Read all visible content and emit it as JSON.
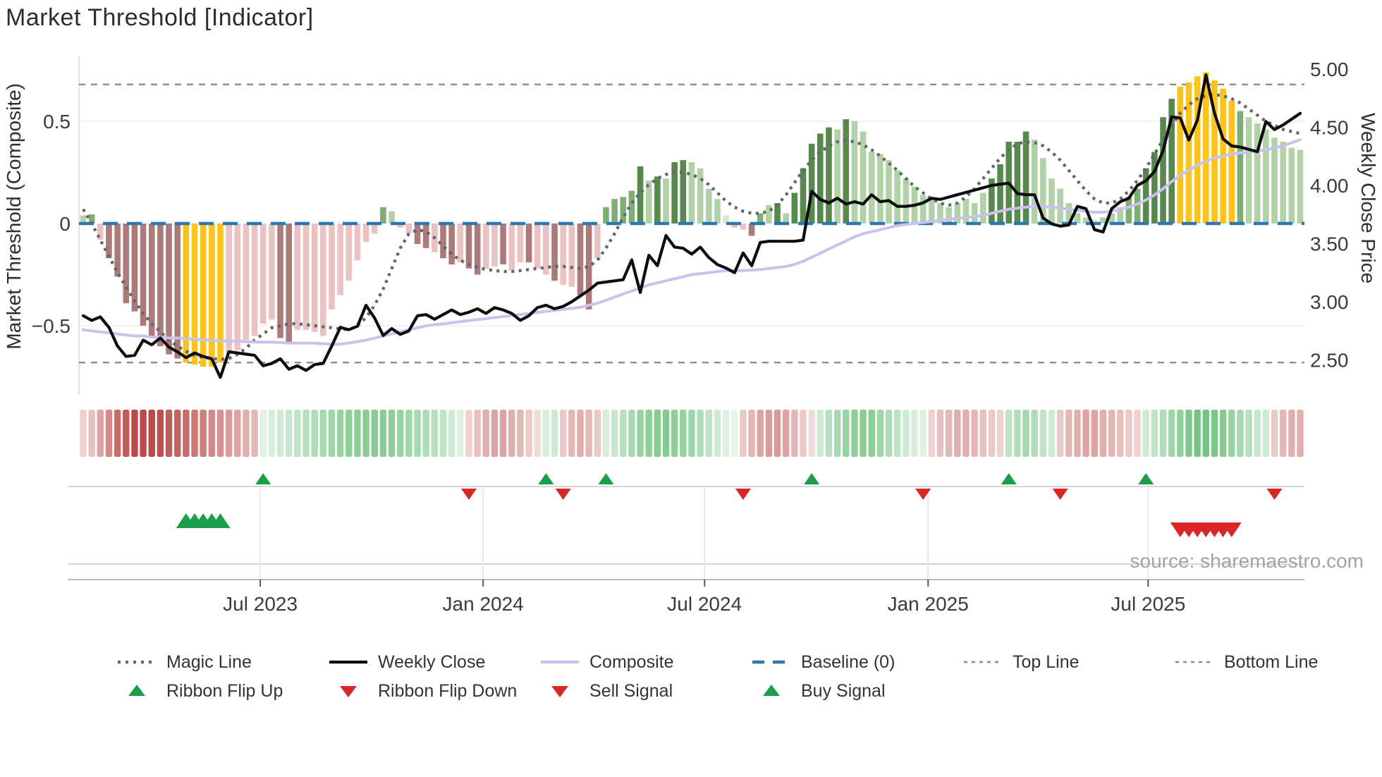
{
  "title": "Market Threshold [Indicator]",
  "source_text": "source: sharemaestro.com",
  "axes": {
    "left_label": "Market Threshold (Composite)",
    "right_label": "Weekly Close Price",
    "left_ticks": [
      {
        "label": "0.5",
        "value": 0.5
      },
      {
        "label": "0",
        "value": 0
      },
      {
        "label": "−0.5",
        "value": -0.5
      }
    ],
    "right_ticks": [
      {
        "label": "5.00",
        "value": 5.0
      },
      {
        "label": "4.50",
        "value": 4.5
      },
      {
        "label": "4.00",
        "value": 4.0
      },
      {
        "label": "3.50",
        "value": 3.5
      },
      {
        "label": "3.00",
        "value": 3.0
      },
      {
        "label": "2.50",
        "value": 2.5
      }
    ],
    "x_ticks": [
      {
        "label": "Jul 2023",
        "week": 20.66
      },
      {
        "label": "Jan 2024",
        "week": 46.66
      },
      {
        "label": "Jul 2024",
        "week": 72.5
      },
      {
        "label": "Jan 2025",
        "week": 98.58
      },
      {
        "label": "Jul 2025",
        "week": 124.26
      }
    ]
  },
  "legend": {
    "row1": [
      {
        "key": "magic",
        "label": "Magic Line"
      },
      {
        "key": "close",
        "label": "Weekly Close"
      },
      {
        "key": "composite",
        "label": "Composite"
      },
      {
        "key": "baseline",
        "label": "Baseline (0)"
      },
      {
        "key": "topline",
        "label": "Top Line"
      },
      {
        "key": "bottomline",
        "label": "Bottom Line"
      }
    ],
    "row2": [
      {
        "key": "flipup",
        "label": "Ribbon Flip Up"
      },
      {
        "key": "flipdown",
        "label": "Ribbon Flip Down"
      },
      {
        "key": "sell",
        "label": "Sell Signal"
      },
      {
        "key": "buy",
        "label": "Buy Signal"
      }
    ]
  },
  "colors": {
    "dark_green": "#57894e",
    "medium_green": "#7fae74",
    "light_green": "#b1d2a6",
    "pale_green": "#d8ebd1",
    "yellow": "#fbc41d",
    "mauve_red": "#ac7a79",
    "light_pink": "#e9c2c1",
    "close_line": "#0d0d0d",
    "composite_line": "#c8c2ec",
    "magic_line": "#62656d",
    "baseline": "#2e77ae",
    "guide_line": "#8b8b8b",
    "signal_green": "#1a9e4b",
    "signal_red": "#d92627",
    "ribbon_green_max": "#5fba6f",
    "ribbon_red_max": "#b94a47",
    "gridline": "#edeef2"
  },
  "chart_data": {
    "type": "bar",
    "description": "Weekly market-threshold histogram (left axis) with weekly close price, composite and magic lines; ribbon strip and buy/sell/flip signal markers below.",
    "n_weeks": 143,
    "ylim_left": [
      -0.75,
      0.8
    ],
    "top_line_value": 0.68,
    "bottom_line_value": -0.68,
    "baseline_value": 0,
    "threshold_values": [
      0.04,
      0.045,
      -0.08,
      -0.17,
      -0.26,
      -0.39,
      -0.43,
      -0.5,
      -0.55,
      -0.6,
      -0.64,
      -0.66,
      -0.68,
      -0.69,
      -0.7,
      -0.7,
      -0.68,
      -0.64,
      -0.62,
      -0.57,
      -0.55,
      -0.49,
      -0.47,
      -0.56,
      -0.59,
      -0.52,
      -0.52,
      -0.53,
      -0.55,
      -0.42,
      -0.35,
      -0.28,
      -0.18,
      -0.09,
      -0.05,
      0.08,
      0.06,
      -0.02,
      -0.05,
      -0.1,
      -0.12,
      -0.14,
      -0.17,
      -0.2,
      -0.19,
      -0.22,
      -0.25,
      -0.22,
      -0.21,
      -0.2,
      -0.23,
      -0.19,
      -0.19,
      -0.22,
      -0.25,
      -0.28,
      -0.3,
      -0.31,
      -0.35,
      -0.42,
      -0.17,
      0.08,
      0.12,
      0.13,
      0.16,
      0.28,
      0.21,
      0.23,
      0.22,
      0.3,
      0.31,
      0.3,
      0.27,
      0.17,
      0.12,
      0.04,
      -0.02,
      -0.03,
      -0.06,
      0.05,
      0.09,
      0.1,
      0.05,
      0.15,
      0.27,
      0.39,
      0.44,
      0.47,
      0.46,
      0.51,
      0.5,
      0.45,
      0.35,
      0.34,
      0.31,
      0.26,
      0.22,
      0.18,
      0.14,
      0.12,
      0.1,
      0.08,
      0.1,
      0.12,
      0.1,
      0.15,
      0.22,
      0.29,
      0.4,
      0.4,
      0.45,
      0.41,
      0.32,
      0.22,
      0.17,
      0.1,
      0.05,
      0.03,
      0.02,
      0.03,
      0.05,
      0.08,
      0.13,
      0.17,
      0.27,
      0.35,
      0.52,
      0.61,
      0.67,
      0.69,
      0.72,
      0.74,
      0.7,
      0.66,
      0.6,
      0.55,
      0.52,
      0.49,
      0.46,
      0.42,
      0.4,
      0.37,
      0.36
    ],
    "threshold_colors": [
      "lg",
      "mg",
      "lp",
      "mv",
      "mv",
      "mv",
      "mv",
      "mv",
      "mv",
      "mv",
      "mv",
      "mv",
      "yl",
      "yl",
      "yl",
      "yl",
      "yl",
      "lp",
      "lp",
      "lp",
      "lp",
      "lp",
      "lp",
      "mv",
      "mv",
      "lp",
      "lp",
      "lp",
      "lp",
      "lp",
      "lp",
      "lp",
      "lp",
      "lp",
      "lp",
      "mg",
      "lg",
      "lp",
      "lp",
      "mv",
      "mv",
      "lp",
      "mv",
      "mv",
      "lp",
      "mv",
      "mv",
      "lp",
      "lp",
      "mv",
      "lp",
      "lp",
      "mv",
      "lp",
      "lp",
      "mv",
      "lp",
      "lp",
      "mv",
      "mv",
      "lp",
      "mg",
      "mg",
      "mg",
      "mg",
      "dg",
      "lg",
      "dg",
      "lg",
      "dg",
      "dg",
      "lg",
      "lg",
      "lg",
      "lg",
      "pg",
      "lp",
      "lp",
      "mv",
      "mg",
      "lg",
      "dg",
      "lg",
      "dg",
      "dg",
      "dg",
      "dg",
      "dg",
      "lg",
      "dg",
      "lg",
      "lg",
      "lg",
      "lg",
      "lg",
      "lg",
      "lg",
      "lg",
      "lg",
      "lg",
      "lg",
      "lg",
      "lg",
      "lg",
      "lg",
      "lg",
      "dg",
      "dg",
      "dg",
      "dg",
      "dg",
      "lg",
      "lg",
      "lg",
      "lg",
      "lg",
      "lg",
      "lg",
      "pg",
      "lg",
      "lg",
      "lg",
      "mg",
      "mg",
      "dg",
      "dg",
      "dg",
      "dg",
      "yl",
      "yl",
      "yl",
      "yl",
      "yl",
      "yl",
      "yl",
      "mg",
      "lg",
      "lg",
      "lg",
      "lg",
      "lg",
      "lg",
      "lg"
    ],
    "weekly_close": [
      2.88,
      2.84,
      2.87,
      2.78,
      2.62,
      2.53,
      2.54,
      2.67,
      2.63,
      2.69,
      2.61,
      2.57,
      2.52,
      2.56,
      2.53,
      2.51,
      2.35,
      2.57,
      2.56,
      2.55,
      2.54,
      2.45,
      2.47,
      2.51,
      2.42,
      2.45,
      2.41,
      2.46,
      2.47,
      2.62,
      2.78,
      2.76,
      2.79,
      2.97,
      2.86,
      2.71,
      2.77,
      2.72,
      2.75,
      2.88,
      2.89,
      2.85,
      2.89,
      2.93,
      2.89,
      2.91,
      2.94,
      2.9,
      2.95,
      2.93,
      2.9,
      2.84,
      2.88,
      2.95,
      2.97,
      2.94,
      2.96,
      3.0,
      3.05,
      3.1,
      3.16,
      3.17,
      3.18,
      3.19,
      3.36,
      3.08,
      3.4,
      3.31,
      3.57,
      3.47,
      3.46,
      3.41,
      3.47,
      3.38,
      3.32,
      3.29,
      3.25,
      3.42,
      3.31,
      3.51,
      3.52,
      3.52,
      3.52,
      3.52,
      3.53,
      3.95,
      3.88,
      3.85,
      3.89,
      3.84,
      3.86,
      3.84,
      3.92,
      3.86,
      3.87,
      3.82,
      3.82,
      3.83,
      3.85,
      3.89,
      3.88,
      3.9,
      3.92,
      3.94,
      3.96,
      3.98,
      4.0,
      4.01,
      4.02,
      3.93,
      3.92,
      3.92,
      3.72,
      3.67,
      3.65,
      3.66,
      3.82,
      3.8,
      3.62,
      3.6,
      3.8,
      3.86,
      3.89,
      4.0,
      4.04,
      4.12,
      4.3,
      4.59,
      4.58,
      4.39,
      4.56,
      4.95,
      4.62,
      4.4,
      4.34,
      4.33,
      4.31,
      4.29,
      4.55,
      4.48,
      4.52,
      4.57,
      4.62
    ],
    "composite": [
      -0.52,
      -0.525,
      -0.53,
      -0.535,
      -0.54,
      -0.545,
      -0.55,
      -0.55,
      -0.555,
      -0.555,
      -0.56,
      -0.56,
      -0.565,
      -0.565,
      -0.57,
      -0.57,
      -0.575,
      -0.575,
      -0.575,
      -0.578,
      -0.58,
      -0.58,
      -0.58,
      -0.582,
      -0.585,
      -0.585,
      -0.585,
      -0.585,
      -0.588,
      -0.59,
      -0.59,
      -0.585,
      -0.578,
      -0.57,
      -0.56,
      -0.55,
      -0.54,
      -0.53,
      -0.52,
      -0.51,
      -0.5,
      -0.495,
      -0.49,
      -0.485,
      -0.48,
      -0.475,
      -0.47,
      -0.465,
      -0.46,
      -0.455,
      -0.45,
      -0.445,
      -0.44,
      -0.435,
      -0.43,
      -0.425,
      -0.42,
      -0.415,
      -0.41,
      -0.4,
      -0.39,
      -0.375,
      -0.36,
      -0.345,
      -0.33,
      -0.315,
      -0.3,
      -0.29,
      -0.28,
      -0.27,
      -0.26,
      -0.25,
      -0.245,
      -0.24,
      -0.235,
      -0.23,
      -0.23,
      -0.23,
      -0.228,
      -0.225,
      -0.22,
      -0.215,
      -0.21,
      -0.2,
      -0.185,
      -0.165,
      -0.145,
      -0.125,
      -0.105,
      -0.085,
      -0.065,
      -0.05,
      -0.04,
      -0.03,
      -0.02,
      -0.01,
      -0.005,
      0.0,
      0.005,
      0.01,
      0.015,
      0.02,
      0.025,
      0.03,
      0.035,
      0.04,
      0.05,
      0.06,
      0.07,
      0.075,
      0.08,
      0.085,
      0.085,
      0.08,
      0.075,
      0.07,
      0.065,
      0.06,
      0.055,
      0.055,
      0.06,
      0.07,
      0.08,
      0.095,
      0.115,
      0.14,
      0.17,
      0.205,
      0.235,
      0.26,
      0.285,
      0.305,
      0.32,
      0.33,
      0.34,
      0.345,
      0.35,
      0.355,
      0.36,
      0.37,
      0.38,
      0.395,
      0.41
    ],
    "magic": [
      0.07,
      0.0,
      -0.08,
      -0.16,
      -0.24,
      -0.31,
      -0.38,
      -0.44,
      -0.49,
      -0.53,
      -0.57,
      -0.6,
      -0.625,
      -0.645,
      -0.655,
      -0.66,
      -0.665,
      -0.66,
      -0.64,
      -0.61,
      -0.57,
      -0.54,
      -0.51,
      -0.5,
      -0.49,
      -0.49,
      -0.495,
      -0.5,
      -0.505,
      -0.51,
      -0.515,
      -0.52,
      -0.5,
      -0.46,
      -0.4,
      -0.32,
      -0.22,
      -0.12,
      -0.05,
      -0.03,
      -0.04,
      -0.07,
      -0.11,
      -0.15,
      -0.18,
      -0.2,
      -0.215,
      -0.225,
      -0.23,
      -0.235,
      -0.235,
      -0.23,
      -0.225,
      -0.22,
      -0.215,
      -0.21,
      -0.21,
      -0.215,
      -0.22,
      -0.21,
      -0.18,
      -0.12,
      -0.05,
      0.03,
      0.1,
      0.15,
      0.19,
      0.22,
      0.24,
      0.25,
      0.25,
      0.24,
      0.22,
      0.19,
      0.15,
      0.11,
      0.08,
      0.06,
      0.05,
      0.05,
      0.06,
      0.09,
      0.14,
      0.2,
      0.26,
      0.31,
      0.35,
      0.38,
      0.4,
      0.405,
      0.4,
      0.385,
      0.36,
      0.33,
      0.295,
      0.26,
      0.22,
      0.18,
      0.15,
      0.12,
      0.1,
      0.09,
      0.1,
      0.13,
      0.17,
      0.22,
      0.27,
      0.32,
      0.36,
      0.39,
      0.4,
      0.395,
      0.38,
      0.35,
      0.31,
      0.26,
      0.21,
      0.16,
      0.12,
      0.1,
      0.1,
      0.12,
      0.16,
      0.21,
      0.27,
      0.34,
      0.41,
      0.48,
      0.54,
      0.58,
      0.61,
      0.625,
      0.63,
      0.625,
      0.61,
      0.59,
      0.56,
      0.53,
      0.5,
      0.48,
      0.46,
      0.45,
      0.44
    ],
    "ribbon": [
      -0.25,
      -0.35,
      -0.5,
      -0.65,
      -0.8,
      -0.9,
      -1.0,
      -1.0,
      -1.0,
      -0.95,
      -0.9,
      -0.85,
      -0.8,
      -0.75,
      -0.7,
      -0.65,
      -0.6,
      -0.55,
      -0.5,
      -0.45,
      -0.4,
      0.2,
      0.25,
      0.3,
      0.35,
      0.4,
      0.45,
      0.5,
      0.55,
      0.6,
      0.65,
      0.7,
      0.72,
      0.74,
      0.75,
      0.73,
      0.7,
      0.65,
      0.6,
      0.55,
      0.5,
      0.45,
      0.4,
      0.3,
      0.2,
      -0.25,
      -0.35,
      -0.45,
      -0.5,
      -0.5,
      -0.45,
      -0.4,
      -0.3,
      -0.2,
      0.25,
      0.3,
      -0.3,
      -0.4,
      -0.45,
      -0.4,
      -0.3,
      0.25,
      0.35,
      0.45,
      0.55,
      0.65,
      0.7,
      0.75,
      0.75,
      0.7,
      0.65,
      0.6,
      0.5,
      0.4,
      0.3,
      0.2,
      0.15,
      -0.3,
      -0.4,
      -0.5,
      -0.55,
      -0.55,
      -0.5,
      -0.4,
      -0.3,
      -0.2,
      0.3,
      0.45,
      0.55,
      0.65,
      0.7,
      0.72,
      0.7,
      0.6,
      0.5,
      0.4,
      0.3,
      0.25,
      0.2,
      -0.25,
      -0.35,
      -0.4,
      -0.45,
      -0.45,
      -0.4,
      -0.35,
      -0.3,
      -0.25,
      0.4,
      0.5,
      0.55,
      0.5,
      0.4,
      0.3,
      -0.3,
      -0.4,
      -0.45,
      -0.5,
      -0.5,
      -0.45,
      -0.4,
      -0.35,
      -0.3,
      -0.25,
      0.3,
      0.4,
      0.5,
      0.6,
      0.7,
      0.8,
      0.85,
      0.85,
      0.8,
      0.75,
      0.65,
      0.55,
      0.45,
      0.35,
      0.3,
      -0.3,
      -0.4,
      -0.45,
      -0.45
    ],
    "markers": {
      "ribbon_flip_up_weeks": [
        21,
        54,
        61,
        85,
        108,
        124
      ],
      "ribbon_flip_down_weeks": [
        45,
        56,
        77,
        98,
        114,
        139
      ],
      "buy_signal_weeks": [
        12,
        13,
        14,
        15,
        16
      ],
      "sell_signal_weeks": [
        128,
        129,
        130,
        131,
        132,
        133,
        134
      ]
    }
  }
}
